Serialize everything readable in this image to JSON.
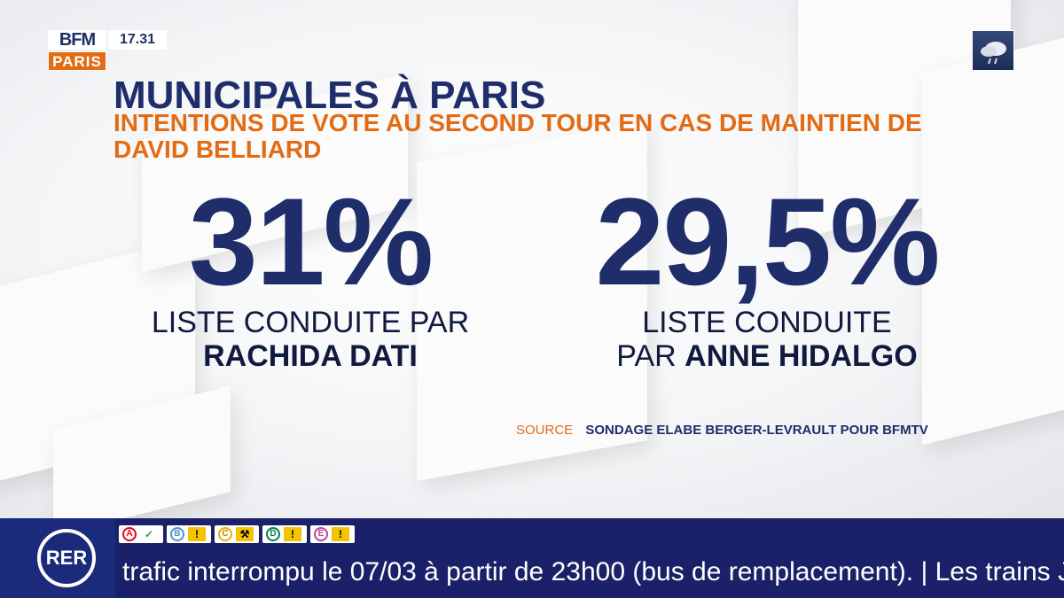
{
  "channel": {
    "logo_top": "BFM",
    "logo_bottom": "PARIS",
    "time": "17.31"
  },
  "headline": {
    "title": "MUNICIPALES À PARIS",
    "subtitle": "INTENTIONS DE VOTE AU SECOND TOUR EN CAS DE MAINTIEN DE DAVID BELLIARD"
  },
  "results": [
    {
      "percent": "31%",
      "line1": "LISTE CONDUITE PAR",
      "line2_prefix": "",
      "line2_name": "RACHIDA DATI"
    },
    {
      "percent": "29,5%",
      "line1": "LISTE CONDUITE",
      "line2_prefix": "PAR ",
      "line2_name": "ANNE HIDALGO"
    }
  ],
  "source": {
    "label": "SOURCE",
    "text": "SONDAGE ELABE BERGER-LEVRAULT POUR BFMTV"
  },
  "ticker": {
    "network": "RER",
    "lines": [
      {
        "letter": "A",
        "status": "ok",
        "color": "#e3051b"
      },
      {
        "letter": "B",
        "status": "warning",
        "color": "#5291ce"
      },
      {
        "letter": "C",
        "status": "works",
        "color": "#ffcd00"
      },
      {
        "letter": "D",
        "status": "warning",
        "color": "#00814f"
      },
      {
        "letter": "E",
        "status": "warning",
        "color": "#c04191"
      }
    ],
    "message": "trafic interrompu le 07/03 à partir de 23h00 (bus de remplacement). | Les trains JILL (Vers"
  },
  "colors": {
    "navy": "#1f2d6b",
    "orange": "#e36b14",
    "ticker_bg": "#1a2168"
  }
}
